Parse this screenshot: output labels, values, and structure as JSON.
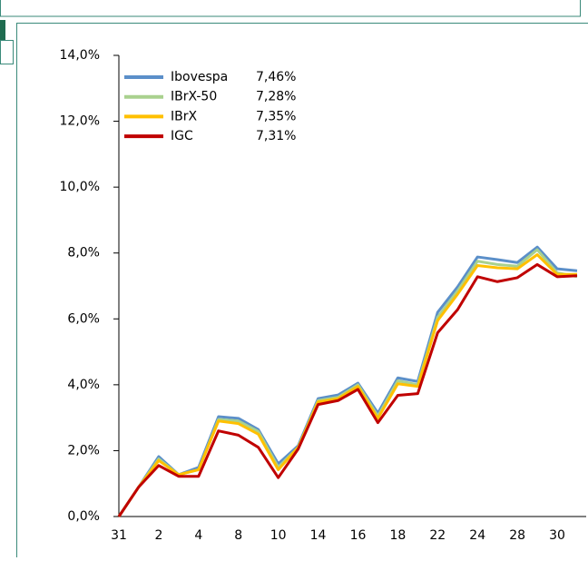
{
  "chart_data": {
    "type": "line",
    "categories": [
      "31",
      null,
      "2",
      null,
      "4",
      null,
      "8",
      null,
      "10",
      null,
      "14",
      null,
      "16",
      null,
      "18",
      null,
      "22",
      null,
      "24",
      null,
      "28",
      null,
      "30",
      null
    ],
    "ylim": [
      0,
      14
    ],
    "yticks": [
      {
        "value": 0,
        "label": "0,0%"
      },
      {
        "value": 2,
        "label": "2,0%"
      },
      {
        "value": 4,
        "label": "4,0%"
      },
      {
        "value": 6,
        "label": "6,0%"
      },
      {
        "value": 8,
        "label": "8,0%"
      },
      {
        "value": 10,
        "label": "10,0%"
      },
      {
        "value": 12,
        "label": "12,0%"
      },
      {
        "value": 14,
        "label": "14,0%"
      }
    ],
    "legend_position": "upper left",
    "series": [
      {
        "name": "Ibovespa",
        "legend_value": "7,46%",
        "color": "#5b8fc9",
        "values": [
          0,
          0.9,
          1.82,
          1.27,
          1.49,
          3.03,
          2.98,
          2.64,
          1.6,
          2.15,
          3.58,
          3.69,
          4.05,
          3.14,
          4.21,
          4.1,
          6.2,
          6.97,
          7.88,
          7.8,
          7.71,
          8.18,
          7.52,
          7.46
        ]
      },
      {
        "name": "IBrX-50",
        "legend_value": "7,28%",
        "color": "#a9d18e",
        "values": [
          0,
          0.9,
          1.75,
          1.27,
          1.42,
          2.95,
          2.9,
          2.58,
          1.5,
          2.1,
          3.52,
          3.62,
          4.0,
          3.05,
          4.12,
          4.0,
          6.05,
          6.85,
          7.75,
          7.65,
          7.6,
          8.1,
          7.4,
          7.28
        ]
      },
      {
        "name": "IBrX",
        "legend_value": "7,35%",
        "color": "#ffc000",
        "values": [
          0,
          0.9,
          1.7,
          1.27,
          1.42,
          2.9,
          2.82,
          2.5,
          1.42,
          2.1,
          3.48,
          3.58,
          3.95,
          2.98,
          4.03,
          3.95,
          5.95,
          6.75,
          7.62,
          7.55,
          7.52,
          7.95,
          7.35,
          7.35
        ]
      },
      {
        "name": "IGC",
        "legend_value": "7,31%",
        "color": "#c00000",
        "values": [
          0,
          0.9,
          1.55,
          1.22,
          1.22,
          2.6,
          2.47,
          2.1,
          1.18,
          2.05,
          3.4,
          3.52,
          3.86,
          2.85,
          3.68,
          3.73,
          5.58,
          6.28,
          7.28,
          7.13,
          7.25,
          7.65,
          7.28,
          7.31
        ]
      }
    ]
  }
}
